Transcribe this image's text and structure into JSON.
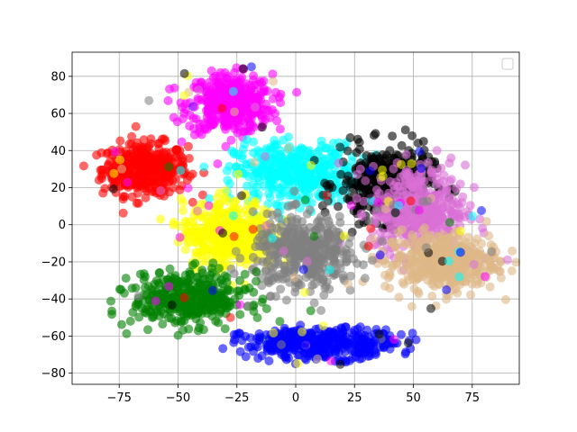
{
  "chart_data": {
    "type": "scatter",
    "title": "",
    "xlabel": "",
    "ylabel": "",
    "xlim": [
      -95,
      95
    ],
    "ylim": [
      -86,
      93
    ],
    "xticks": [
      -75,
      -50,
      -25,
      0,
      25,
      50,
      75
    ],
    "xtick_labels": [
      "−75",
      "−50",
      "−25",
      "0",
      "25",
      "50",
      "75"
    ],
    "yticks": [
      -80,
      -60,
      -40,
      -20,
      0,
      20,
      40,
      60,
      80
    ],
    "ytick_labels": [
      "−80",
      "−60",
      "−40",
      "−20",
      "0",
      "20",
      "40",
      "60",
      "80"
    ],
    "grid": true,
    "legend": {
      "visible": true,
      "placement": "top-right",
      "entries": []
    },
    "point_alpha": 0.6,
    "clusters": [
      {
        "color": "#ff0000",
        "center": [
          -64,
          30
        ],
        "spread": [
          9,
          7
        ],
        "points": [
          [
            -78,
            30
          ],
          [
            -72,
            38
          ],
          [
            -66,
            42
          ],
          [
            -58,
            44
          ],
          [
            -54,
            36
          ],
          [
            -50,
            30
          ],
          [
            -46,
            24
          ],
          [
            -52,
            20
          ],
          [
            -60,
            18
          ],
          [
            -68,
            22
          ],
          [
            -74,
            26
          ],
          [
            -62,
            30
          ],
          [
            -56,
            28
          ],
          [
            -64,
            36
          ],
          [
            -70,
            32
          ],
          [
            -48,
            34
          ],
          [
            -60,
            24
          ],
          [
            -66,
            26
          ],
          [
            -76,
            34
          ],
          [
            -58,
            38
          ]
        ]
      },
      {
        "color": "#ff00ff",
        "center": [
          -28,
          65
        ],
        "spread": [
          9,
          8
        ],
        "points": [
          [
            -40,
            75
          ],
          [
            -34,
            80
          ],
          [
            -26,
            82
          ],
          [
            -18,
            78
          ],
          [
            -12,
            72
          ],
          [
            -10,
            62
          ],
          [
            -14,
            54
          ],
          [
            -22,
            50
          ],
          [
            -30,
            54
          ],
          [
            -36,
            62
          ],
          [
            -28,
            68
          ],
          [
            -20,
            66
          ],
          [
            -24,
            74
          ],
          [
            -32,
            72
          ],
          [
            -16,
            64
          ],
          [
            -26,
            58
          ],
          [
            -38,
            68
          ],
          [
            -8,
            56
          ],
          [
            -20,
            58
          ],
          [
            -30,
            76
          ]
        ]
      },
      {
        "color": "#00ffff",
        "center": [
          0,
          28
        ],
        "spread": [
          13,
          8
        ],
        "points": [
          [
            -28,
            22
          ],
          [
            -20,
            26
          ],
          [
            -14,
            30
          ],
          [
            -6,
            34
          ],
          [
            2,
            38
          ],
          [
            10,
            40
          ],
          [
            18,
            36
          ],
          [
            20,
            28
          ],
          [
            14,
            22
          ],
          [
            6,
            20
          ],
          [
            -2,
            24
          ],
          [
            -10,
            20
          ],
          [
            -18,
            18
          ],
          [
            8,
            30
          ],
          [
            0,
            30
          ],
          [
            -8,
            26
          ],
          [
            16,
            44
          ],
          [
            24,
            34
          ],
          [
            -24,
            28
          ],
          [
            12,
            26
          ]
        ]
      },
      {
        "color": "#000000",
        "center": [
          38,
          22
        ],
        "spread": [
          10,
          10
        ],
        "points": [
          [
            22,
            14
          ],
          [
            26,
            6
          ],
          [
            30,
            18
          ],
          [
            34,
            26
          ],
          [
            38,
            30
          ],
          [
            42,
            36
          ],
          [
            48,
            40
          ],
          [
            52,
            44
          ],
          [
            46,
            28
          ],
          [
            40,
            14
          ],
          [
            34,
            8
          ],
          [
            30,
            2
          ],
          [
            44,
            22
          ],
          [
            50,
            30
          ],
          [
            36,
            20
          ],
          [
            28,
            10
          ],
          [
            54,
            36
          ],
          [
            24,
            -4
          ],
          [
            40,
            40
          ],
          [
            46,
            18
          ]
        ]
      },
      {
        "color": "#da70d6",
        "center": [
          52,
          8
        ],
        "spread": [
          10,
          12
        ],
        "points": [
          [
            36,
            -8
          ],
          [
            40,
            0
          ],
          [
            44,
            8
          ],
          [
            48,
            14
          ],
          [
            54,
            20
          ],
          [
            60,
            28
          ],
          [
            66,
            36
          ],
          [
            64,
            18
          ],
          [
            58,
            6
          ],
          [
            50,
            -2
          ],
          [
            42,
            -12
          ],
          [
            56,
            -8
          ],
          [
            62,
            8
          ],
          [
            70,
            22
          ],
          [
            48,
            28
          ],
          [
            60,
            40
          ],
          [
            52,
            12
          ],
          [
            40,
            -16
          ],
          [
            68,
            6
          ],
          [
            46,
            2
          ]
        ]
      },
      {
        "color": "#deb887",
        "center": [
          62,
          -20
        ],
        "spread": [
          12,
          8
        ],
        "points": [
          [
            40,
            -26
          ],
          [
            46,
            -32
          ],
          [
            52,
            -36
          ],
          [
            58,
            -30
          ],
          [
            64,
            -24
          ],
          [
            70,
            -18
          ],
          [
            76,
            -10
          ],
          [
            82,
            -6
          ],
          [
            72,
            -26
          ],
          [
            60,
            -16
          ],
          [
            50,
            -22
          ],
          [
            44,
            -18
          ],
          [
            56,
            -26
          ],
          [
            66,
            -32
          ],
          [
            78,
            -16
          ],
          [
            84,
            -12
          ],
          [
            62,
            -8
          ],
          [
            54,
            -14
          ],
          [
            48,
            -30
          ],
          [
            70,
            -6
          ]
        ]
      },
      {
        "color": "#ffff00",
        "center": [
          -28,
          -5
        ],
        "spread": [
          10,
          9
        ],
        "points": [
          [
            -44,
            -4
          ],
          [
            -40,
            4
          ],
          [
            -34,
            10
          ],
          [
            -26,
            12
          ],
          [
            -18,
            10
          ],
          [
            -14,
            2
          ],
          [
            -16,
            -8
          ],
          [
            -22,
            -16
          ],
          [
            -30,
            -20
          ],
          [
            -38,
            -16
          ],
          [
            -42,
            -10
          ],
          [
            -30,
            -2
          ],
          [
            -24,
            -6
          ],
          [
            -34,
            4
          ],
          [
            -20,
            -2
          ],
          [
            -28,
            6
          ],
          [
            -36,
            -8
          ],
          [
            -26,
            -14
          ],
          [
            -12,
            -12
          ],
          [
            -40,
            -20
          ]
        ]
      },
      {
        "color": "#808080",
        "center": [
          4,
          -15
        ],
        "spread": [
          11,
          10
        ],
        "points": [
          [
            -12,
            -10
          ],
          [
            -8,
            -2
          ],
          [
            -2,
            4
          ],
          [
            6,
            8
          ],
          [
            14,
            2
          ],
          [
            18,
            -6
          ],
          [
            20,
            -16
          ],
          [
            16,
            -26
          ],
          [
            8,
            -32
          ],
          [
            0,
            -34
          ],
          [
            -8,
            -28
          ],
          [
            -14,
            -20
          ],
          [
            4,
            -14
          ],
          [
            -2,
            -20
          ],
          [
            10,
            -18
          ],
          [
            2,
            -6
          ],
          [
            12,
            -10
          ],
          [
            -6,
            -12
          ],
          [
            8,
            -24
          ],
          [
            -10,
            -26
          ]
        ]
      },
      {
        "color": "#008000",
        "center": [
          -45,
          -40
        ],
        "spread": [
          12,
          7
        ],
        "points": [
          [
            -68,
            -34
          ],
          [
            -64,
            -28
          ],
          [
            -60,
            -32
          ],
          [
            -56,
            -38
          ],
          [
            -52,
            -42
          ],
          [
            -46,
            -44
          ],
          [
            -40,
            -48
          ],
          [
            -34,
            -52
          ],
          [
            -28,
            -44
          ],
          [
            -34,
            -38
          ],
          [
            -44,
            -36
          ],
          [
            -50,
            -34
          ],
          [
            -58,
            -26
          ],
          [
            -62,
            -40
          ],
          [
            -38,
            -42
          ],
          [
            -30,
            -56
          ],
          [
            -18,
            -44
          ],
          [
            -14,
            -40
          ],
          [
            -48,
            -48
          ],
          [
            -24,
            -38
          ]
        ]
      },
      {
        "color": "#0000ff",
        "center": [
          10,
          -64
        ],
        "spread": [
          16,
          4
        ],
        "points": [
          [
            -26,
            -62
          ],
          [
            -20,
            -66
          ],
          [
            -12,
            -68
          ],
          [
            -4,
            -66
          ],
          [
            4,
            -62
          ],
          [
            12,
            -60
          ],
          [
            20,
            -58
          ],
          [
            28,
            -62
          ],
          [
            36,
            -66
          ],
          [
            42,
            -64
          ],
          [
            34,
            -70
          ],
          [
            24,
            -72
          ],
          [
            14,
            -70
          ],
          [
            4,
            -72
          ],
          [
            -6,
            -70
          ],
          [
            -16,
            -72
          ],
          [
            -10,
            -62
          ],
          [
            18,
            -66
          ],
          [
            30,
            -68
          ],
          [
            8,
            -66
          ]
        ]
      }
    ]
  }
}
